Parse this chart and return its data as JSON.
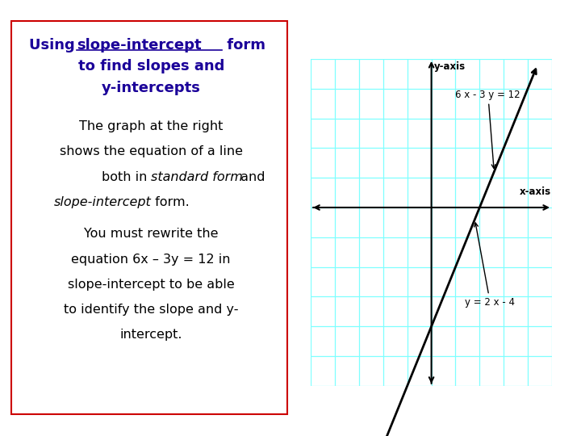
{
  "bg_color": "#ffffff",
  "left_box_border": "#cc0000",
  "title_color": "#1a0099",
  "body_color": "#000000",
  "grid_color": "#7fffff",
  "grid_bg": "#e0ffff",
  "slope": 2,
  "intercept": -4,
  "x_range": [
    -5,
    5
  ],
  "y_range": [
    -6,
    5
  ],
  "label_standard": "6 x - 3 y = 12",
  "label_slopeint": "y = 2 x - 4",
  "x_axis_label": "x-axis",
  "y_axis_label": "y-axis"
}
